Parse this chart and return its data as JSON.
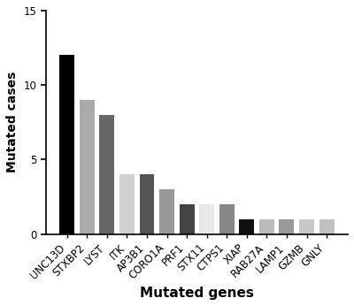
{
  "categories": [
    "UNC13D",
    "STXBP2",
    "LYST",
    "ITK",
    "AP3B1",
    "CORO1A",
    "PRF1",
    "STX11",
    "CTPS1",
    "XIAP",
    "RAB27A",
    "LAMP1",
    "GZMB",
    "GNLY"
  ],
  "values": [
    12,
    9,
    8,
    4,
    4,
    3,
    2,
    2,
    2,
    1,
    1,
    1,
    1,
    1
  ],
  "bar_colors": [
    "#000000",
    "#aaaaaa",
    "#666666",
    "#d0d0d0",
    "#555555",
    "#999999",
    "#444444",
    "#e8e8e8",
    "#888888",
    "#111111",
    "#bbbbbb",
    "#999999",
    "#c8c8c8",
    "#c0c0c0"
  ],
  "ylabel": "Mutated cases",
  "xlabel": "Mutated genes",
  "ylim": [
    0,
    15
  ],
  "yticks": [
    0,
    5,
    10,
    15
  ],
  "background_color": "#ffffff",
  "ylabel_fontsize": 10,
  "xlabel_fontsize": 11,
  "tick_fontsize": 8.5,
  "bar_width": 0.75
}
